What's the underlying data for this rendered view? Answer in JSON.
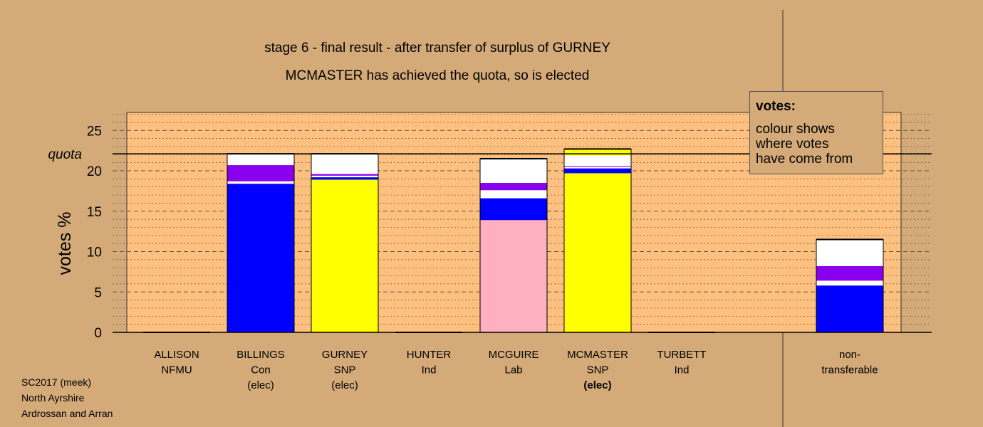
{
  "chart_data": {
    "type": "bar",
    "stacked": true,
    "title": "stage 6 - final result - after transfer of surplus of GURNEY",
    "subtitle": "MCMASTER has achieved the quota, so is elected",
    "ylabel": "votes %",
    "ylim": [
      0,
      27
    ],
    "yticks": [
      0,
      5,
      10,
      15,
      20,
      25
    ],
    "quota": 22.1,
    "quota_label": "quota",
    "grid": true,
    "categories": [
      {
        "name": "ALLISON",
        "party": "NFMU",
        "status": "",
        "status_bold": false
      },
      {
        "name": "BILLINGS",
        "party": "Con",
        "status": "(elec)",
        "status_bold": false
      },
      {
        "name": "GURNEY",
        "party": "SNP",
        "status": "(elec)",
        "status_bold": false
      },
      {
        "name": "HUNTER",
        "party": "Ind",
        "status": "",
        "status_bold": false
      },
      {
        "name": "MCGUIRE",
        "party": "Lab",
        "status": "",
        "status_bold": false
      },
      {
        "name": "MCMASTER",
        "party": "SNP",
        "status": "(elec)",
        "status_bold": true
      },
      {
        "name": "TURBETT",
        "party": "Ind",
        "status": "",
        "status_bold": false
      }
    ],
    "nontransferable_label": [
      "non-",
      "transferable"
    ],
    "bars": [
      {
        "category": "ALLISON",
        "segments": []
      },
      {
        "category": "BILLINGS",
        "segments": [
          {
            "color": "#0000ff",
            "value": 18.4
          },
          {
            "color": "#ffffff",
            "value": 0.3
          },
          {
            "color": "#8800ee",
            "value": 2.0
          },
          {
            "color": "#ffffff",
            "value": 1.4
          }
        ]
      },
      {
        "category": "GURNEY",
        "segments": [
          {
            "color": "#ffff00",
            "value": 18.9
          },
          {
            "color": "#0000ff",
            "value": 0.3
          },
          {
            "color": "#ffffff",
            "value": 0.2
          },
          {
            "color": "#8800ee",
            "value": 0.2
          },
          {
            "color": "#ffffff",
            "value": 2.5
          }
        ]
      },
      {
        "category": "HUNTER",
        "segments": []
      },
      {
        "category": "MCGUIRE",
        "segments": [
          {
            "color": "#ffb0c0",
            "value": 13.9
          },
          {
            "color": "#0000ff",
            "value": 2.7
          },
          {
            "color": "#ffffff",
            "value": 1.0
          },
          {
            "color": "#8800ee",
            "value": 0.9
          },
          {
            "color": "#ffffff",
            "value": 3.0
          }
        ]
      },
      {
        "category": "MCMASTER",
        "segments": [
          {
            "color": "#ffff00",
            "value": 19.7
          },
          {
            "color": "#0000ff",
            "value": 0.6
          },
          {
            "color": "#ffffff",
            "value": 0.2
          },
          {
            "color": "#8800ee",
            "value": 0.1
          },
          {
            "color": "#ffffff",
            "value": 1.3
          },
          {
            "color": "#ffff00",
            "value": 0.8
          }
        ]
      },
      {
        "category": "TURBETT",
        "segments": []
      },
      {
        "category": "non-transferable",
        "segments": [
          {
            "color": "#0000ff",
            "value": 5.8
          },
          {
            "color": "#ffffff",
            "value": 0.6
          },
          {
            "color": "#8800ee",
            "value": 1.8
          },
          {
            "color": "#ffffff",
            "value": 3.3
          }
        ]
      }
    ]
  },
  "legend": {
    "title": "votes:",
    "line1": "colour shows",
    "line2": "where votes",
    "line3": "have come from"
  },
  "footer": {
    "line1": "SC2017 (meek)",
    "line2": "North Ayrshire",
    "line3": "Ardrossan and Arran"
  }
}
